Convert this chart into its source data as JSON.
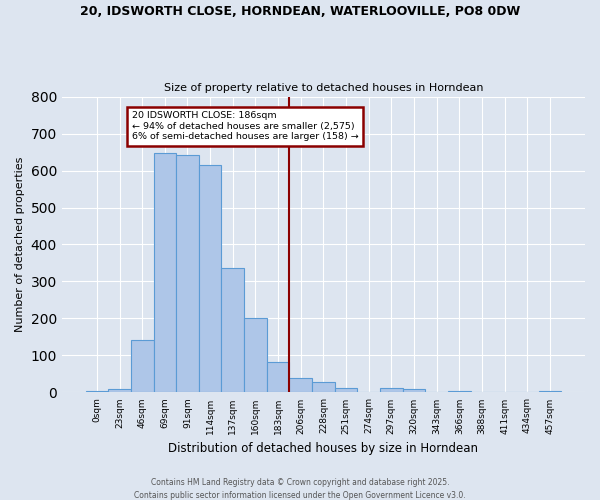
{
  "title_line1": "20, IDSWORTH CLOSE, HORNDEAN, WATERLOOVILLE, PO8 0DW",
  "title_line2": "Size of property relative to detached houses in Horndean",
  "xlabel": "Distribution of detached houses by size in Horndean",
  "ylabel": "Number of detached properties",
  "bin_labels": [
    "0sqm",
    "23sqm",
    "46sqm",
    "69sqm",
    "91sqm",
    "114sqm",
    "137sqm",
    "160sqm",
    "183sqm",
    "206sqm",
    "228sqm",
    "251sqm",
    "274sqm",
    "297sqm",
    "320sqm",
    "343sqm",
    "366sqm",
    "388sqm",
    "411sqm",
    "434sqm",
    "457sqm"
  ],
  "bar_values": [
    5,
    8,
    143,
    648,
    643,
    615,
    337,
    200,
    83,
    40,
    27,
    12,
    0,
    11,
    10,
    0,
    5,
    0,
    0,
    0,
    5
  ],
  "bar_color": "#aec6e8",
  "bar_edge_color": "#5b9bd5",
  "vline_color": "#8b0000",
  "annotation_title": "20 IDSWORTH CLOSE: 186sqm",
  "annotation_line1": "← 94% of detached houses are smaller (2,575)",
  "annotation_line2": "6% of semi-detached houses are larger (158) →",
  "annotation_box_color": "#8b0000",
  "background_color": "#dde5f0",
  "footer_line1": "Contains HM Land Registry data © Crown copyright and database right 2025.",
  "footer_line2": "Contains public sector information licensed under the Open Government Licence v3.0.",
  "ylim": [
    0,
    800
  ],
  "yticks": [
    0,
    100,
    200,
    300,
    400,
    500,
    600,
    700,
    800
  ]
}
